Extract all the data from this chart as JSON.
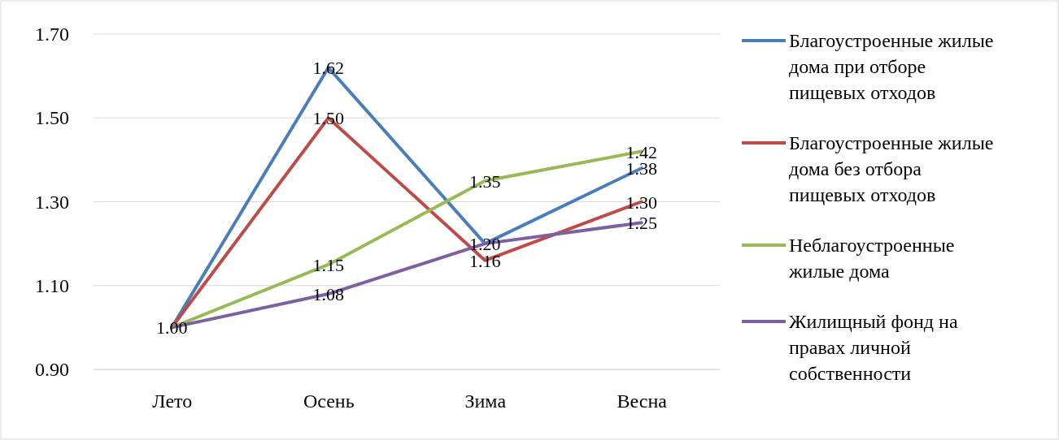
{
  "chart_data": {
    "type": "line",
    "categories": [
      "Лето",
      "Осень",
      "Зима",
      "Весна"
    ],
    "series": [
      {
        "name": "Благоустроенные жилые дома при отборе пищевых отходов",
        "color": "#4a7ebb",
        "values": [
          1.0,
          1.62,
          1.2,
          1.38
        ],
        "value_labels": [
          "1.00",
          "1.62",
          "1.20",
          "1.38"
        ]
      },
      {
        "name": "Благоустроенные жилые дома без отбора пищевых отходов",
        "color": "#be4b48",
        "values": [
          1.0,
          1.5,
          1.16,
          1.3
        ],
        "value_labels": [
          null,
          "1.50",
          "1.16",
          "1.30"
        ]
      },
      {
        "name": "Неблагоустроенные жилые дома",
        "color": "#98b954",
        "values": [
          1.0,
          1.15,
          1.35,
          1.42
        ],
        "value_labels": [
          null,
          "1.15",
          "1.35",
          "1.42"
        ]
      },
      {
        "name": "Жилищный фонд на правах личной собственности",
        "color": "#7d60a0",
        "values": [
          1.0,
          1.08,
          1.2,
          1.25
        ],
        "value_labels": [
          null,
          "1.08",
          null,
          "1.25"
        ]
      }
    ],
    "ylim": [
      0.9,
      1.7
    ],
    "yticks": [
      {
        "value": 0.9,
        "label": "0.90"
      },
      {
        "value": 1.1,
        "label": "1.10"
      },
      {
        "value": 1.3,
        "label": "1.30"
      },
      {
        "value": 1.5,
        "label": "1.50"
      },
      {
        "value": 1.7,
        "label": "1.70"
      }
    ],
    "grid": "y",
    "legend": "right",
    "marker": "none",
    "line_style": "solid"
  }
}
